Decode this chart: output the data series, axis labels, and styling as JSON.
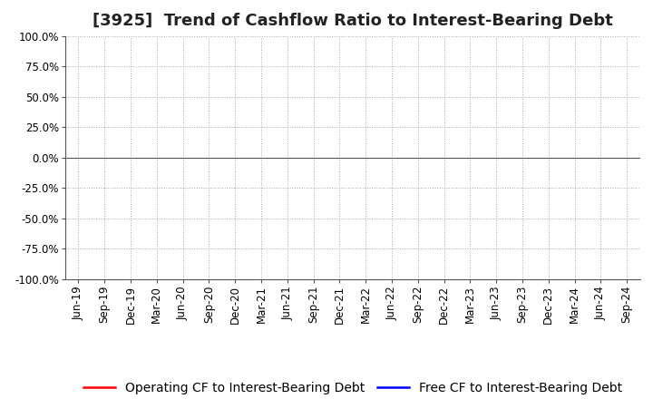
{
  "title": "[3925]  Trend of Cashflow Ratio to Interest-Bearing Debt",
  "ylim": [
    -1.0,
    1.0
  ],
  "yticks": [
    -1.0,
    -0.75,
    -0.5,
    -0.25,
    0.0,
    0.25,
    0.5,
    0.75,
    1.0
  ],
  "ytick_labels": [
    "-100.0%",
    "-75.0%",
    "-50.0%",
    "-25.0%",
    "0.0%",
    "25.0%",
    "50.0%",
    "75.0%",
    "100.0%"
  ],
  "x_labels": [
    "Jun-19",
    "Sep-19",
    "Dec-19",
    "Mar-20",
    "Jun-20",
    "Sep-20",
    "Dec-20",
    "Mar-21",
    "Jun-21",
    "Sep-21",
    "Dec-21",
    "Mar-22",
    "Jun-22",
    "Sep-22",
    "Dec-22",
    "Mar-23",
    "Jun-23",
    "Sep-23",
    "Dec-23",
    "Mar-24",
    "Jun-24",
    "Sep-24"
  ],
  "background_color": "#ffffff",
  "plot_bg_color": "#ffffff",
  "grid_color": "#aaaaaa",
  "zero_line_color": "#555555",
  "line1_color": "#ff0000",
  "line1_label": "Operating CF to Interest-Bearing Debt",
  "line2_color": "#0000ff",
  "line2_label": "Free CF to Interest-Bearing Debt",
  "title_fontsize": 13,
  "tick_fontsize": 8.5,
  "legend_fontsize": 10
}
